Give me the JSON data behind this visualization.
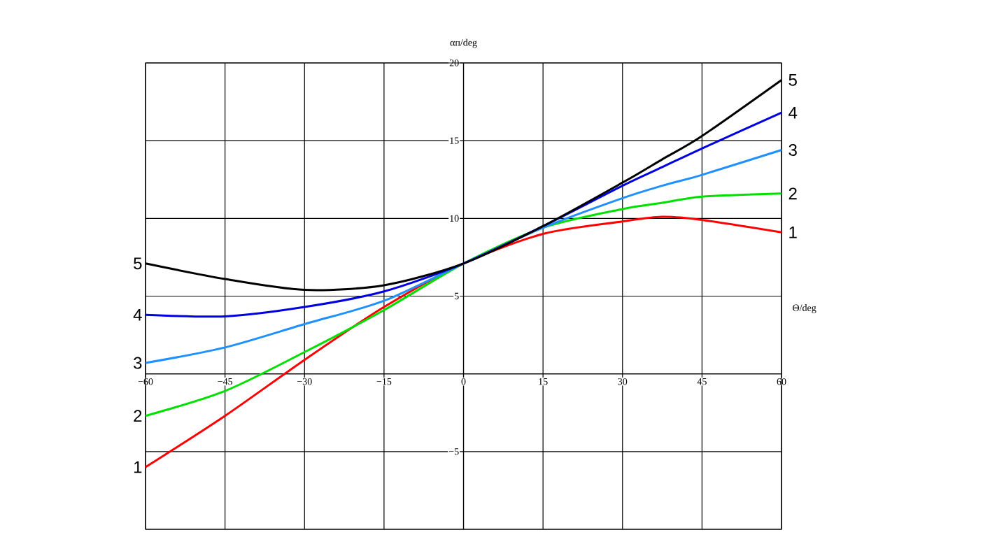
{
  "chart_data": {
    "type": "line",
    "xlabel": "Θ/deg",
    "ylabel": "αп/deg",
    "x": [
      -60,
      -45,
      -30,
      -15,
      0,
      15,
      30,
      37.5,
      45,
      60
    ],
    "series": [
      {
        "name": "1",
        "color": "#ff0000",
        "values": [
          -6.0,
          -2.7,
          0.9,
          4.3,
          7.1,
          9.0,
          9.8,
          10.1,
          9.9,
          9.1
        ]
      },
      {
        "name": "2",
        "color": "#00e000",
        "values": [
          -2.7,
          -1.1,
          1.4,
          4.1,
          7.1,
          9.4,
          10.6,
          11.0,
          11.4,
          11.6
        ]
      },
      {
        "name": "3",
        "color": "#1e90ff",
        "values": [
          0.7,
          1.7,
          3.2,
          4.7,
          7.1,
          9.4,
          11.3,
          12.1,
          12.8,
          14.4
        ]
      },
      {
        "name": "4",
        "color": "#0000e0",
        "values": [
          3.8,
          3.7,
          4.3,
          5.3,
          7.1,
          9.5,
          12.1,
          13.3,
          14.5,
          16.8
        ]
      },
      {
        "name": "5",
        "color": "#000000",
        "values": [
          7.1,
          6.1,
          5.4,
          5.7,
          7.1,
          9.5,
          12.3,
          13.8,
          15.3,
          18.9
        ]
      }
    ],
    "xlim": [
      -60,
      60
    ],
    "ylim": [
      -10,
      20
    ],
    "xticks": [
      {
        "value": -60,
        "label": "−60"
      },
      {
        "value": -45,
        "label": "−45"
      },
      {
        "value": -30,
        "label": "−30"
      },
      {
        "value": -15,
        "label": "−15"
      },
      0,
      15,
      30,
      45,
      60
    ],
    "yticks": [
      {
        "value": -10,
        "label": null
      },
      {
        "value": -5,
        "label": "−5"
      },
      {
        "value": 0,
        "label": null
      },
      5,
      10,
      15,
      20
    ],
    "grid": true,
    "legend": false,
    "marker": "none",
    "line_style": "solid"
  }
}
